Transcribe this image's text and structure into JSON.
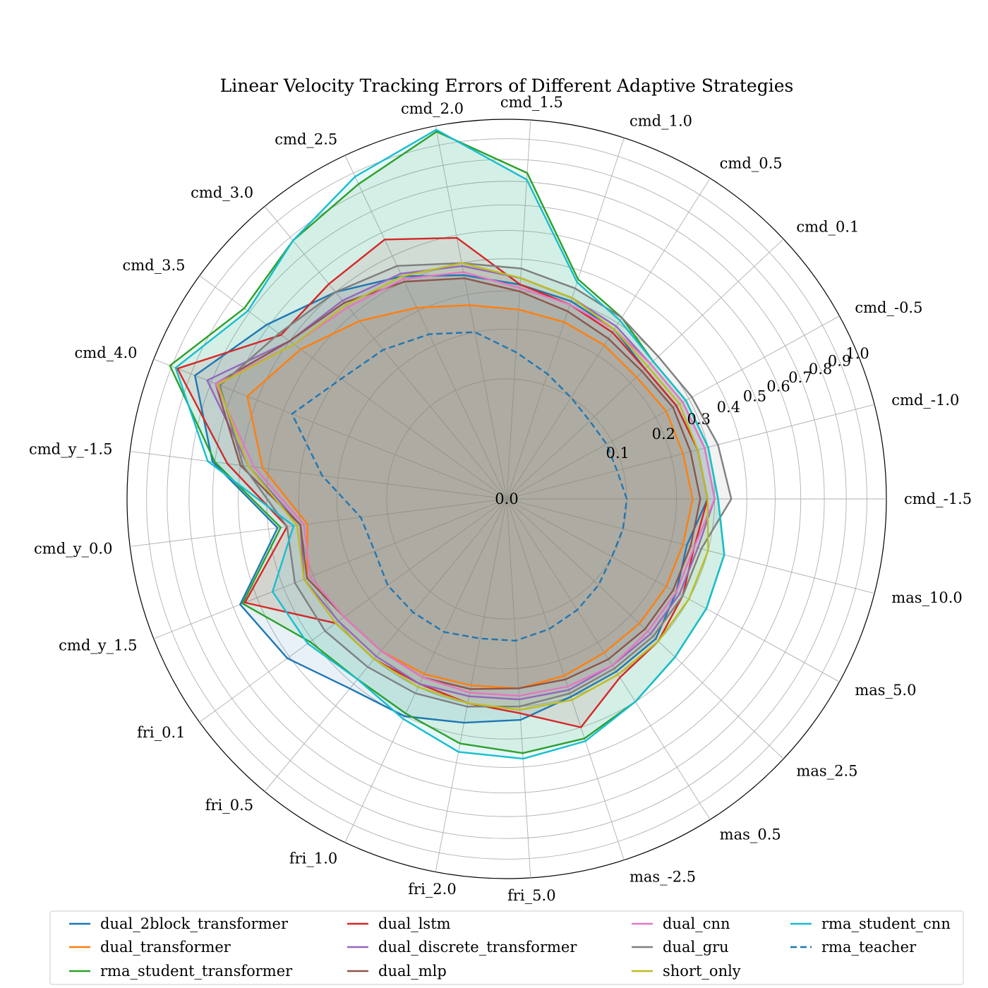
{
  "chart_data": {
    "type": "radar",
    "title": "Linear Velocity Tracking Errors of Different Adaptive Strategies",
    "categories": [
      "cmd_-1.5",
      "cmd_-1.0",
      "cmd_-0.5",
      "cmd_0.1",
      "cmd_0.5",
      "cmd_1.0",
      "cmd_1.5",
      "cmd_2.0",
      "cmd_2.5",
      "cmd_3.0",
      "cmd_3.5",
      "cmd_4.0",
      "cmd_y_-1.5",
      "cmd_y_0.0",
      "cmd_y_1.5",
      "fri_0.1",
      "fri_0.5",
      "fri_1.0",
      "fri_2.0",
      "fri_5.0",
      "mas_-2.5",
      "mas_0.5",
      "mas_2.5",
      "mas_5.0",
      "mas_10.0"
    ],
    "radial_ticks": [
      "0.0",
      "0.1",
      "0.2",
      "0.3",
      "0.4",
      "0.5",
      "0.6",
      "0.7",
      "0.8",
      "0.9",
      "1.0"
    ],
    "ylim": [
      0,
      1.0
    ],
    "grid": true,
    "legend_position": "bottom",
    "series": [
      {
        "name": "dual_2block_transformer",
        "color": "#1f77b4",
        "dashed": false,
        "fill": true,
        "values": [
          0.28,
          0.27,
          0.26,
          0.25,
          0.28,
          0.3,
          0.32,
          0.36,
          0.42,
          0.5,
          0.61,
          0.78,
          0.61,
          0.37,
          0.57,
          0.51,
          0.42,
          0.4,
          0.36,
          0.34,
          0.3,
          0.29,
          0.29,
          0.26,
          0.24
        ]
      },
      {
        "name": "dual_transformer",
        "color": "#ff7f0e",
        "dashed": false,
        "fill": true,
        "values": [
          0.24,
          0.23,
          0.23,
          0.22,
          0.23,
          0.24,
          0.25,
          0.27,
          0.31,
          0.37,
          0.45,
          0.54,
          0.42,
          0.28,
          0.32,
          0.28,
          0.27,
          0.26,
          0.25,
          0.25,
          0.24,
          0.23,
          0.23,
          0.23,
          0.23
        ]
      },
      {
        "name": "rma_student_transformer",
        "color": "#2ca02c",
        "dashed": false,
        "fill": true,
        "values": [
          0.31,
          0.3,
          0.29,
          0.28,
          0.32,
          0.37,
          0.74,
          0.97,
          0.84,
          0.78,
          0.73,
          0.91,
          0.6,
          0.36,
          0.56,
          0.41,
          0.38,
          0.39,
          0.43,
          0.45,
          0.44,
          0.4,
          0.37,
          0.36,
          0.35
        ]
      },
      {
        "name": "dual_lstm",
        "color": "#d62728",
        "dashed": false,
        "fill": true,
        "values": [
          0.28,
          0.27,
          0.26,
          0.25,
          0.27,
          0.29,
          0.32,
          0.49,
          0.57,
          0.54,
          0.54,
          0.87,
          0.55,
          0.34,
          0.55,
          0.31,
          0.3,
          0.29,
          0.3,
          0.32,
          0.4,
          0.31,
          0.3,
          0.28,
          0.26
        ]
      },
      {
        "name": "dual_discrete_transformer",
        "color": "#9467bd",
        "dashed": false,
        "fill": true,
        "values": [
          0.3,
          0.29,
          0.28,
          0.27,
          0.29,
          0.31,
          0.34,
          0.39,
          0.43,
          0.46,
          0.5,
          0.72,
          0.47,
          0.3,
          0.33,
          0.3,
          0.29,
          0.29,
          0.28,
          0.28,
          0.28,
          0.27,
          0.27,
          0.27,
          0.27
        ]
      },
      {
        "name": "dual_mlp",
        "color": "#8c564b",
        "dashed": false,
        "fill": true,
        "values": [
          0.26,
          0.25,
          0.25,
          0.24,
          0.25,
          0.27,
          0.3,
          0.35,
          0.4,
          0.45,
          0.5,
          0.68,
          0.5,
          0.3,
          0.32,
          0.28,
          0.27,
          0.27,
          0.26,
          0.25,
          0.25,
          0.25,
          0.25,
          0.25,
          0.25
        ]
      },
      {
        "name": "dual_cnn",
        "color": "#e377c2",
        "dashed": false,
        "fill": true,
        "values": [
          0.3,
          0.29,
          0.28,
          0.27,
          0.28,
          0.29,
          0.31,
          0.37,
          0.41,
          0.43,
          0.48,
          0.68,
          0.45,
          0.29,
          0.31,
          0.28,
          0.27,
          0.27,
          0.27,
          0.27,
          0.27,
          0.27,
          0.26,
          0.26,
          0.26
        ]
      },
      {
        "name": "dual_gru",
        "color": "#7f7f7f",
        "dashed": false,
        "fill": true,
        "values": [
          0.35,
          0.33,
          0.31,
          0.3,
          0.32,
          0.34,
          0.37,
          0.4,
          0.46,
          0.5,
          0.55,
          0.66,
          0.49,
          0.34,
          0.36,
          0.35,
          0.33,
          0.32,
          0.31,
          0.3,
          0.29,
          0.28,
          0.28,
          0.28,
          0.28
        ]
      },
      {
        "name": "short_only",
        "color": "#bcbd22",
        "dashed": false,
        "fill": true,
        "values": [
          0.28,
          0.27,
          0.27,
          0.26,
          0.28,
          0.31,
          0.34,
          0.4,
          0.42,
          0.44,
          0.48,
          0.67,
          0.47,
          0.31,
          0.33,
          0.31,
          0.3,
          0.3,
          0.3,
          0.31,
          0.31,
          0.3,
          0.3,
          0.3,
          0.3
        ]
      },
      {
        "name": "rma_student_cnn",
        "color": "#17becf",
        "dashed": false,
        "fill": true,
        "values": [
          0.31,
          0.3,
          0.29,
          0.28,
          0.31,
          0.36,
          0.71,
          0.98,
          0.88,
          0.78,
          0.71,
          0.88,
          0.63,
          0.32,
          0.44,
          0.42,
          0.38,
          0.41,
          0.46,
          0.47,
          0.45,
          0.4,
          0.37,
          0.36,
          0.35
        ]
      },
      {
        "name": "rma_teacher",
        "color": "#1f77b4",
        "dashed": true,
        "fill": false,
        "values": [
          0.1,
          0.09,
          0.09,
          0.09,
          0.1,
          0.12,
          0.15,
          0.2,
          0.23,
          0.26,
          0.29,
          0.37,
          0.24,
          0.15,
          0.14,
          0.15,
          0.15,
          0.15,
          0.14,
          0.14,
          0.13,
          0.12,
          0.11,
          0.1,
          0.1
        ]
      }
    ]
  }
}
